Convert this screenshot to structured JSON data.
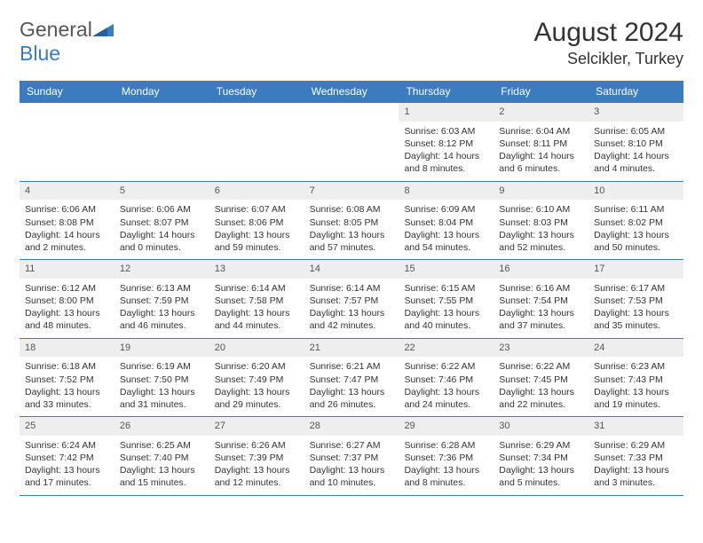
{
  "logo": {
    "text1": "General",
    "text2": "Blue"
  },
  "title": "August 2024",
  "location": "Selcikler, Turkey",
  "weekdays": [
    "Sunday",
    "Monday",
    "Tuesday",
    "Wednesday",
    "Thursday",
    "Friday",
    "Saturday"
  ],
  "colors": {
    "header_bg": "#3b7bbf",
    "header_text": "#ffffff",
    "day_number_bg": "#eeeeee",
    "border": "#3b7bbf",
    "text": "#333333"
  },
  "weeks": [
    [
      {
        "n": "",
        "sr": "",
        "ss": "",
        "dl": ""
      },
      {
        "n": "",
        "sr": "",
        "ss": "",
        "dl": ""
      },
      {
        "n": "",
        "sr": "",
        "ss": "",
        "dl": ""
      },
      {
        "n": "",
        "sr": "",
        "ss": "",
        "dl": ""
      },
      {
        "n": "1",
        "sr": "Sunrise: 6:03 AM",
        "ss": "Sunset: 8:12 PM",
        "dl": "Daylight: 14 hours and 8 minutes."
      },
      {
        "n": "2",
        "sr": "Sunrise: 6:04 AM",
        "ss": "Sunset: 8:11 PM",
        "dl": "Daylight: 14 hours and 6 minutes."
      },
      {
        "n": "3",
        "sr": "Sunrise: 6:05 AM",
        "ss": "Sunset: 8:10 PM",
        "dl": "Daylight: 14 hours and 4 minutes."
      }
    ],
    [
      {
        "n": "4",
        "sr": "Sunrise: 6:06 AM",
        "ss": "Sunset: 8:08 PM",
        "dl": "Daylight: 14 hours and 2 minutes."
      },
      {
        "n": "5",
        "sr": "Sunrise: 6:06 AM",
        "ss": "Sunset: 8:07 PM",
        "dl": "Daylight: 14 hours and 0 minutes."
      },
      {
        "n": "6",
        "sr": "Sunrise: 6:07 AM",
        "ss": "Sunset: 8:06 PM",
        "dl": "Daylight: 13 hours and 59 minutes."
      },
      {
        "n": "7",
        "sr": "Sunrise: 6:08 AM",
        "ss": "Sunset: 8:05 PM",
        "dl": "Daylight: 13 hours and 57 minutes."
      },
      {
        "n": "8",
        "sr": "Sunrise: 6:09 AM",
        "ss": "Sunset: 8:04 PM",
        "dl": "Daylight: 13 hours and 54 minutes."
      },
      {
        "n": "9",
        "sr": "Sunrise: 6:10 AM",
        "ss": "Sunset: 8:03 PM",
        "dl": "Daylight: 13 hours and 52 minutes."
      },
      {
        "n": "10",
        "sr": "Sunrise: 6:11 AM",
        "ss": "Sunset: 8:02 PM",
        "dl": "Daylight: 13 hours and 50 minutes."
      }
    ],
    [
      {
        "n": "11",
        "sr": "Sunrise: 6:12 AM",
        "ss": "Sunset: 8:00 PM",
        "dl": "Daylight: 13 hours and 48 minutes."
      },
      {
        "n": "12",
        "sr": "Sunrise: 6:13 AM",
        "ss": "Sunset: 7:59 PM",
        "dl": "Daylight: 13 hours and 46 minutes."
      },
      {
        "n": "13",
        "sr": "Sunrise: 6:14 AM",
        "ss": "Sunset: 7:58 PM",
        "dl": "Daylight: 13 hours and 44 minutes."
      },
      {
        "n": "14",
        "sr": "Sunrise: 6:14 AM",
        "ss": "Sunset: 7:57 PM",
        "dl": "Daylight: 13 hours and 42 minutes."
      },
      {
        "n": "15",
        "sr": "Sunrise: 6:15 AM",
        "ss": "Sunset: 7:55 PM",
        "dl": "Daylight: 13 hours and 40 minutes."
      },
      {
        "n": "16",
        "sr": "Sunrise: 6:16 AM",
        "ss": "Sunset: 7:54 PM",
        "dl": "Daylight: 13 hours and 37 minutes."
      },
      {
        "n": "17",
        "sr": "Sunrise: 6:17 AM",
        "ss": "Sunset: 7:53 PM",
        "dl": "Daylight: 13 hours and 35 minutes."
      }
    ],
    [
      {
        "n": "18",
        "sr": "Sunrise: 6:18 AM",
        "ss": "Sunset: 7:52 PM",
        "dl": "Daylight: 13 hours and 33 minutes."
      },
      {
        "n": "19",
        "sr": "Sunrise: 6:19 AM",
        "ss": "Sunset: 7:50 PM",
        "dl": "Daylight: 13 hours and 31 minutes."
      },
      {
        "n": "20",
        "sr": "Sunrise: 6:20 AM",
        "ss": "Sunset: 7:49 PM",
        "dl": "Daylight: 13 hours and 29 minutes."
      },
      {
        "n": "21",
        "sr": "Sunrise: 6:21 AM",
        "ss": "Sunset: 7:47 PM",
        "dl": "Daylight: 13 hours and 26 minutes."
      },
      {
        "n": "22",
        "sr": "Sunrise: 6:22 AM",
        "ss": "Sunset: 7:46 PM",
        "dl": "Daylight: 13 hours and 24 minutes."
      },
      {
        "n": "23",
        "sr": "Sunrise: 6:22 AM",
        "ss": "Sunset: 7:45 PM",
        "dl": "Daylight: 13 hours and 22 minutes."
      },
      {
        "n": "24",
        "sr": "Sunrise: 6:23 AM",
        "ss": "Sunset: 7:43 PM",
        "dl": "Daylight: 13 hours and 19 minutes."
      }
    ],
    [
      {
        "n": "25",
        "sr": "Sunrise: 6:24 AM",
        "ss": "Sunset: 7:42 PM",
        "dl": "Daylight: 13 hours and 17 minutes."
      },
      {
        "n": "26",
        "sr": "Sunrise: 6:25 AM",
        "ss": "Sunset: 7:40 PM",
        "dl": "Daylight: 13 hours and 15 minutes."
      },
      {
        "n": "27",
        "sr": "Sunrise: 6:26 AM",
        "ss": "Sunset: 7:39 PM",
        "dl": "Daylight: 13 hours and 12 minutes."
      },
      {
        "n": "28",
        "sr": "Sunrise: 6:27 AM",
        "ss": "Sunset: 7:37 PM",
        "dl": "Daylight: 13 hours and 10 minutes."
      },
      {
        "n": "29",
        "sr": "Sunrise: 6:28 AM",
        "ss": "Sunset: 7:36 PM",
        "dl": "Daylight: 13 hours and 8 minutes."
      },
      {
        "n": "30",
        "sr": "Sunrise: 6:29 AM",
        "ss": "Sunset: 7:34 PM",
        "dl": "Daylight: 13 hours and 5 minutes."
      },
      {
        "n": "31",
        "sr": "Sunrise: 6:29 AM",
        "ss": "Sunset: 7:33 PM",
        "dl": "Daylight: 13 hours and 3 minutes."
      }
    ]
  ]
}
